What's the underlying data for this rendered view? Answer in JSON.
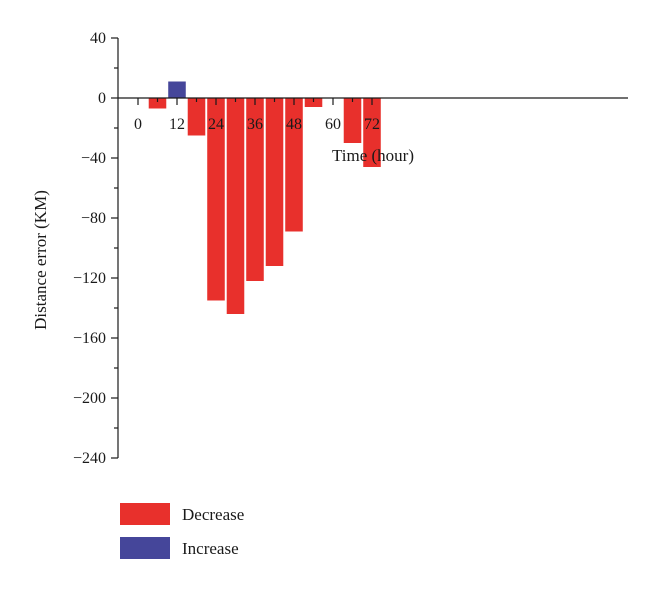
{
  "chart_data": {
    "type": "bar",
    "title": "",
    "xlabel": "Time (hour)",
    "ylabel": "Distance error (KM)",
    "x": [
      6,
      12,
      18,
      24,
      30,
      36,
      42,
      48,
      54,
      66,
      72
    ],
    "values": [
      -7,
      11,
      -25,
      -135,
      -144,
      -122,
      -112,
      -89,
      -6,
      -30,
      -46
    ],
    "bar_series": [
      "Decrease",
      "Increase",
      "Decrease",
      "Decrease",
      "Decrease",
      "Decrease",
      "Decrease",
      "Decrease",
      "Decrease",
      "Decrease",
      "Decrease"
    ],
    "series": [
      {
        "name": "Decrease",
        "color": "#e8302c"
      },
      {
        "name": "Increase",
        "color": "#45469a"
      }
    ],
    "x_ticks": [
      0,
      12,
      24,
      36,
      48,
      60,
      72
    ],
    "x_tick_labels": [
      "0",
      "12",
      "24",
      "36",
      "48",
      "60",
      "72"
    ],
    "y_ticks": [
      40,
      0,
      -40,
      -80,
      -120,
      -160,
      -200,
      -240
    ],
    "y_tick_labels": [
      "40",
      "0",
      "−40",
      "−80",
      "−120",
      "−160",
      "−200",
      "−240"
    ],
    "xlim": [
      -3,
      75
    ],
    "ylim": [
      -240,
      40
    ],
    "bar_width_hours": 5.4,
    "grid": false,
    "legend_placement": "bottom-left"
  }
}
